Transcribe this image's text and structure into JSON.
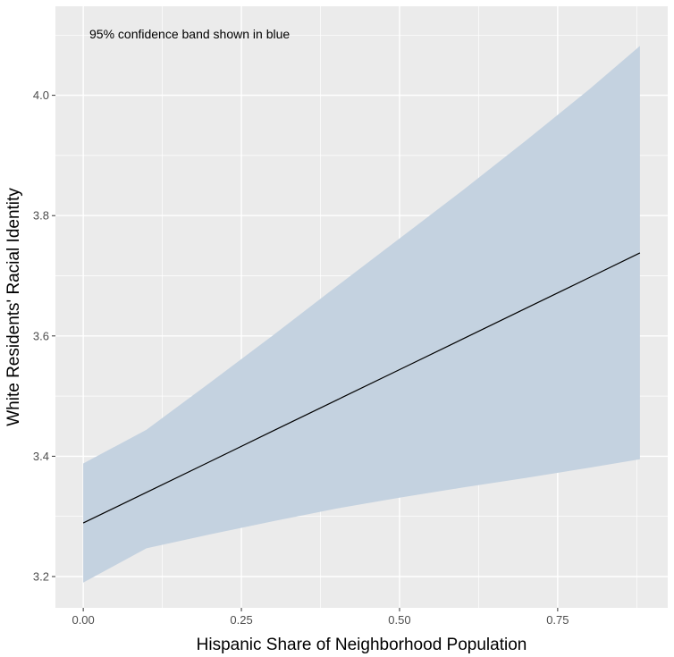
{
  "chart_data": {
    "type": "line",
    "title": "",
    "xlabel": "Hispanic Share of Neighborhood Population",
    "ylabel": "White Residents' Racial Identity",
    "annotation": "95% confidence band shown in blue",
    "xlim": [
      -0.044,
      0.924
    ],
    "ylim": [
      3.148,
      4.148
    ],
    "x_ticks": [
      0.0,
      0.25,
      0.5,
      0.75
    ],
    "x_tick_labels": [
      "0.00",
      "0.25",
      "0.50",
      "0.75"
    ],
    "y_ticks": [
      3.2,
      3.4,
      3.6,
      3.8,
      4.0
    ],
    "y_tick_labels": [
      "3.2",
      "3.4",
      "3.6",
      "3.8",
      "4.0"
    ],
    "grid": true,
    "legend": "none",
    "series": [
      {
        "x": [
          0.0,
          0.1,
          0.2,
          0.3,
          0.4,
          0.5,
          0.6,
          0.7,
          0.8,
          0.88
        ],
        "y": [
          3.289,
          3.34,
          3.391,
          3.442,
          3.493,
          3.544,
          3.595,
          3.646,
          3.697,
          3.738
        ],
        "lower": [
          3.19,
          3.247,
          3.27,
          3.292,
          3.313,
          3.331,
          3.348,
          3.364,
          3.381,
          3.395
        ],
        "upper": [
          3.388,
          3.444,
          3.522,
          3.601,
          3.682,
          3.762,
          3.842,
          3.925,
          4.01,
          4.082
        ]
      }
    ],
    "colors": {
      "line": "#000000",
      "band": "#c4d2e0",
      "panel": "#ebebeb",
      "grid": "#ffffff"
    }
  }
}
